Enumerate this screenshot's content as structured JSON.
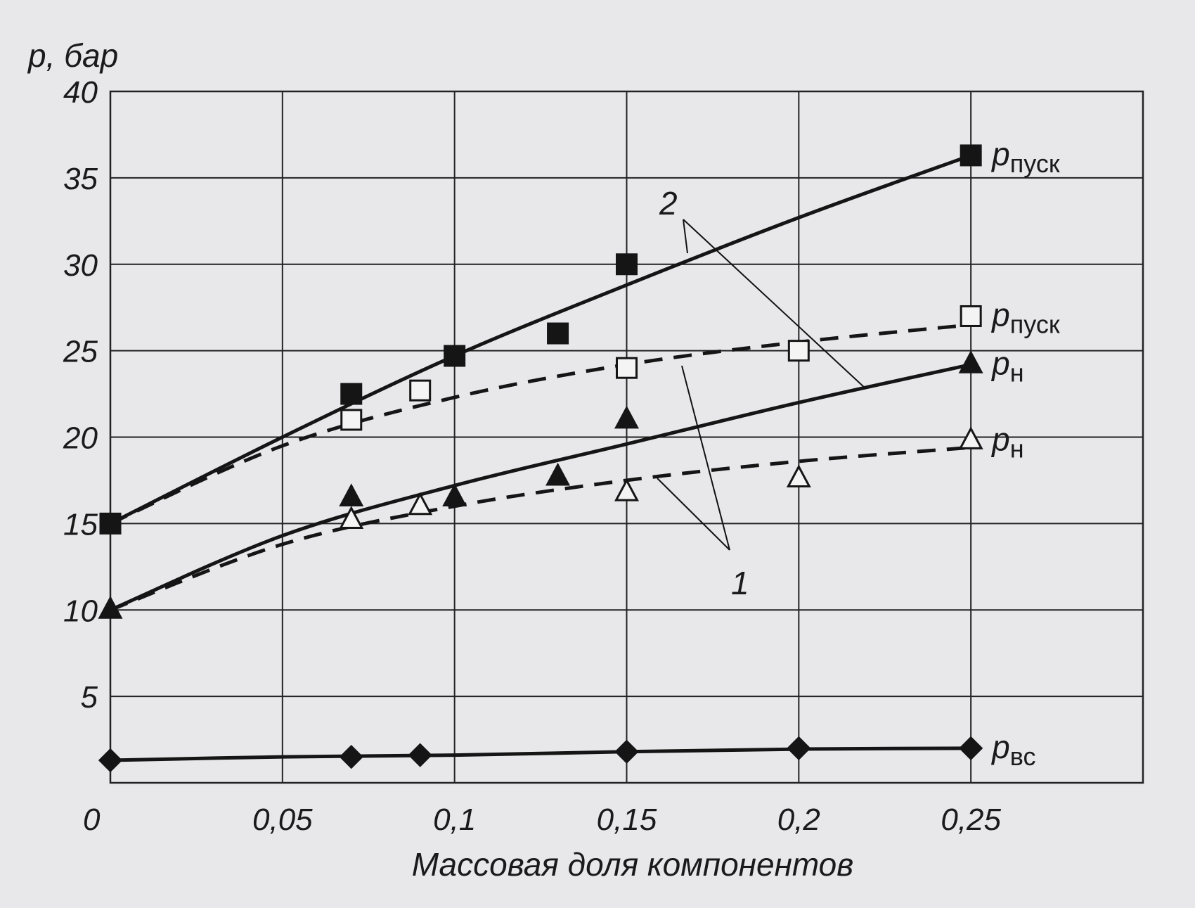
{
  "chart_data": {
    "type": "line",
    "title": "",
    "xlabel": "Массовая доля компонентов",
    "ylabel": "p, бар",
    "xlim": [
      0,
      0.3
    ],
    "ylim": [
      0,
      40
    ],
    "grid": true,
    "x_ticks": [
      0,
      0.05,
      0.1,
      0.15,
      0.2,
      0.25
    ],
    "x_tick_labels": [
      "0",
      "0,05",
      "0,1",
      "0,15",
      "0,2",
      "0,25"
    ],
    "y_ticks": [
      5,
      10,
      15,
      20,
      25,
      30,
      35,
      40
    ],
    "y_tick_labels": [
      "5",
      "10",
      "15",
      "20",
      "25",
      "30",
      "35",
      "40"
    ],
    "curve_labels": [
      "1",
      "2"
    ],
    "fit_x": [
      0,
      0.05,
      0.1,
      0.15,
      0.2,
      0.25
    ],
    "series": [
      {
        "name": "p",
        "sub": "пуск",
        "marker": "square-filled",
        "line": "solid",
        "group": "2",
        "points": [
          [
            0,
            15
          ],
          [
            0.07,
            22.5
          ],
          [
            0.1,
            24.7
          ],
          [
            0.13,
            26
          ],
          [
            0.15,
            30
          ],
          [
            0.25,
            36.3
          ]
        ],
        "fit": [
          15,
          20,
          24.7,
          28.8,
          32.7,
          36.3
        ]
      },
      {
        "name": "p",
        "sub": "пуск",
        "marker": "square-open",
        "line": "dashed",
        "group": "1",
        "points": [
          [
            0.07,
            21
          ],
          [
            0.09,
            22.7
          ],
          [
            0.15,
            24
          ],
          [
            0.2,
            25
          ],
          [
            0.25,
            27
          ]
        ],
        "fit": [
          15,
          19.5,
          22.3,
          24.2,
          25.5,
          26.5
        ]
      },
      {
        "name": "p",
        "sub": "н",
        "marker": "triangle-filled",
        "line": "solid",
        "group": "2",
        "points": [
          [
            0,
            10
          ],
          [
            0.07,
            16.5
          ],
          [
            0.1,
            16.5
          ],
          [
            0.13,
            17.7
          ],
          [
            0.15,
            21
          ],
          [
            0.25,
            24.2
          ]
        ],
        "fit": [
          10,
          14.3,
          17.2,
          19.6,
          22,
          24.2
        ]
      },
      {
        "name": "p",
        "sub": "н",
        "marker": "triangle-open",
        "line": "dashed",
        "group": "1",
        "points": [
          [
            0.07,
            15.2
          ],
          [
            0.09,
            16
          ],
          [
            0.15,
            16.8
          ],
          [
            0.2,
            17.6
          ],
          [
            0.25,
            19.8
          ]
        ],
        "fit": [
          10,
          13.8,
          16,
          17.5,
          18.6,
          19.4
        ]
      },
      {
        "name": "p",
        "sub": "вс",
        "marker": "diamond-filled",
        "line": "solid",
        "group": "",
        "points": [
          [
            0,
            1.3
          ],
          [
            0.07,
            1.5
          ],
          [
            0.09,
            1.6
          ],
          [
            0.15,
            1.8
          ],
          [
            0.2,
            2
          ],
          [
            0.25,
            2
          ]
        ],
        "fit": [
          1.3,
          1.5,
          1.6,
          1.8,
          1.95,
          2.0
        ]
      }
    ]
  }
}
